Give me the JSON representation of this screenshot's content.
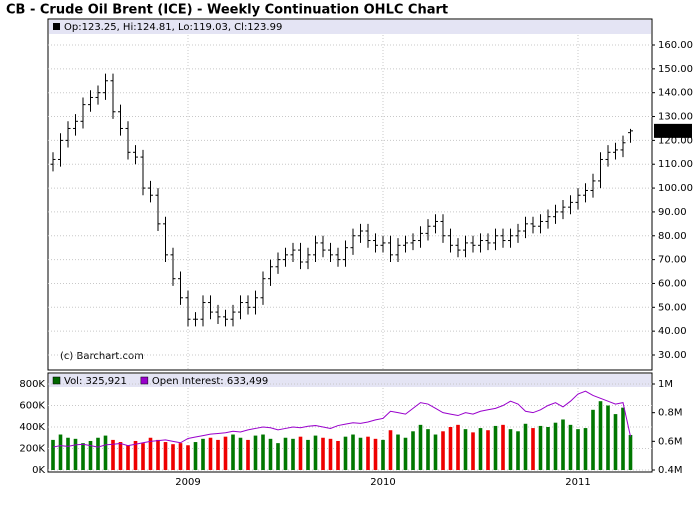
{
  "chart_data": [
    {
      "type": "ohlc",
      "title": "CB - Crude Oil Brent (ICE) - Weekly Continuation OHLC Chart",
      "header": "Op:123.25, Hi:124.81, Lo:119.03, Cl:123.99",
      "annotation": "(c) Barchart.com",
      "up_color": "#007700",
      "down_color": "#ee0000",
      "color": "#000000",
      "categories": [
        null,
        null,
        null,
        null,
        null,
        null,
        null,
        null,
        null,
        null,
        null,
        null,
        null,
        null,
        null,
        null,
        null,
        null,
        "2009",
        null,
        null,
        null,
        null,
        null,
        null,
        null,
        null,
        null,
        null,
        null,
        null,
        null,
        null,
        null,
        null,
        null,
        null,
        null,
        null,
        null,
        null,
        null,
        null,
        null,
        "2010",
        null,
        null,
        null,
        null,
        null,
        null,
        null,
        null,
        null,
        null,
        null,
        null,
        null,
        null,
        null,
        null,
        null,
        null,
        null,
        null,
        null,
        null,
        null,
        null,
        null,
        "2011",
        null,
        null,
        null,
        null,
        null,
        null,
        null
      ],
      "open": [
        110,
        112,
        120,
        125,
        128,
        135,
        138,
        140,
        145,
        132,
        125,
        115,
        113,
        100,
        97,
        85,
        72,
        62,
        54,
        45,
        45,
        52,
        48,
        46,
        45,
        48,
        52,
        50,
        54,
        62,
        67,
        70,
        72,
        74,
        69,
        72,
        77,
        74,
        72,
        70,
        75,
        80,
        82,
        78,
        76,
        77,
        72,
        76,
        77,
        78,
        81,
        84,
        86,
        80,
        76,
        74,
        77,
        76,
        78,
        77,
        80,
        78,
        80,
        82,
        85,
        84,
        86,
        88,
        90,
        92,
        94,
        97,
        99,
        103,
        112,
        115,
        116,
        123.25
      ],
      "high": [
        115,
        123,
        128,
        131,
        138,
        141,
        143,
        148,
        148,
        135,
        128,
        118,
        116,
        103,
        100,
        88,
        75,
        65,
        57,
        48,
        55,
        55,
        51,
        49,
        51,
        55,
        55,
        57,
        65,
        70,
        73,
        75,
        77,
        77,
        75,
        80,
        80,
        77,
        75,
        78,
        83,
        85,
        85,
        81,
        80,
        80,
        79,
        80,
        81,
        84,
        87,
        89,
        89,
        83,
        79,
        80,
        80,
        81,
        81,
        83,
        83,
        83,
        85,
        88,
        88,
        89,
        91,
        93,
        95,
        97,
        100,
        102,
        106,
        115,
        118,
        119,
        122,
        124.81
      ],
      "low": [
        107,
        109,
        117,
        122,
        125,
        132,
        135,
        137,
        129,
        122,
        112,
        110,
        97,
        94,
        82,
        69,
        59,
        51,
        42,
        42,
        42,
        45,
        43,
        42,
        42,
        45,
        47,
        47,
        51,
        59,
        64,
        67,
        69,
        66,
        66,
        69,
        71,
        69,
        67,
        67,
        72,
        77,
        75,
        73,
        73,
        69,
        69,
        73,
        74,
        75,
        78,
        81,
        77,
        73,
        71,
        71,
        73,
        73,
        74,
        74,
        75,
        75,
        77,
        79,
        81,
        81,
        83,
        85,
        87,
        89,
        91,
        94,
        96,
        100,
        109,
        112,
        113,
        119.03
      ],
      "close": [
        112,
        120,
        125,
        128,
        135,
        138,
        140,
        145,
        132,
        125,
        115,
        113,
        100,
        97,
        85,
        72,
        62,
        54,
        45,
        45,
        52,
        48,
        46,
        45,
        48,
        52,
        50,
        54,
        62,
        67,
        70,
        72,
        74,
        69,
        72,
        77,
        74,
        72,
        70,
        75,
        80,
        82,
        78,
        76,
        77,
        72,
        76,
        77,
        78,
        81,
        84,
        86,
        80,
        76,
        74,
        77,
        76,
        78,
        77,
        80,
        78,
        80,
        82,
        85,
        84,
        86,
        88,
        90,
        92,
        94,
        97,
        99,
        103,
        112,
        115,
        116,
        119,
        123.99
      ],
      "ylim": [
        30,
        160
      ],
      "yticks": [
        {
          "value": 30,
          "label": "30.00"
        },
        {
          "value": 40,
          "label": "40.00"
        },
        {
          "value": 50,
          "label": "50.00"
        },
        {
          "value": 60,
          "label": "60.00"
        },
        {
          "value": 70,
          "label": "70.00"
        },
        {
          "value": 80,
          "label": "80.00"
        },
        {
          "value": 90,
          "label": "90.00"
        },
        {
          "value": 100,
          "label": "100.00"
        },
        {
          "value": 110,
          "label": "110.00"
        },
        {
          "value": 120,
          "label": "120.00"
        },
        {
          "value": 130,
          "label": "130.00"
        },
        {
          "value": 140,
          "label": "140.00"
        },
        {
          "value": 150,
          "label": "150.00"
        },
        {
          "value": 160,
          "label": "160.00"
        }
      ],
      "grid": true
    },
    {
      "type": "bar",
      "series": [
        {
          "name": "Vol: 325,921",
          "color": "#006600",
          "values": [
            280000,
            330000,
            300000,
            290000,
            250000,
            270000,
            300000,
            320000,
            280000,
            260000,
            230000,
            270000,
            250000,
            300000,
            280000,
            260000,
            240000,
            250000,
            230000,
            260000,
            290000,
            300000,
            280000,
            310000,
            330000,
            300000,
            280000,
            320000,
            330000,
            290000,
            250000,
            300000,
            290000,
            310000,
            280000,
            320000,
            300000,
            290000,
            270000,
            310000,
            330000,
            300000,
            310000,
            290000,
            280000,
            370000,
            330000,
            300000,
            360000,
            420000,
            380000,
            330000,
            360000,
            400000,
            420000,
            380000,
            350000,
            390000,
            370000,
            410000,
            420000,
            380000,
            360000,
            430000,
            390000,
            410000,
            400000,
            440000,
            470000,
            420000,
            380000,
            390000,
            560000,
            640000,
            600000,
            520000,
            580000,
            325921
          ]
        },
        {
          "name": "Open Interest: 633,499",
          "color": "#9900cc",
          "axis": "y2",
          "values": [
            560000,
            570000,
            565000,
            575000,
            580000,
            570000,
            560000,
            575000,
            580000,
            585000,
            570000,
            580000,
            590000,
            600000,
            605000,
            610000,
            600000,
            590000,
            620000,
            630000,
            640000,
            650000,
            655000,
            660000,
            670000,
            665000,
            680000,
            690000,
            700000,
            695000,
            680000,
            690000,
            700000,
            695000,
            705000,
            710000,
            700000,
            690000,
            710000,
            720000,
            730000,
            725000,
            735000,
            750000,
            760000,
            810000,
            800000,
            790000,
            830000,
            870000,
            860000,
            830000,
            800000,
            790000,
            780000,
            800000,
            790000,
            810000,
            820000,
            830000,
            850000,
            880000,
            860000,
            810000,
            800000,
            820000,
            850000,
            870000,
            840000,
            880000,
            930000,
            950000,
            920000,
            900000,
            880000,
            860000,
            870000,
            633499
          ]
        }
      ],
      "ylim": [
        0,
        800000
      ],
      "yticks": [
        {
          "value": 0,
          "label": "0K"
        },
        {
          "value": 200000,
          "label": "200K"
        },
        {
          "value": 400000,
          "label": "400K"
        },
        {
          "value": 600000,
          "label": "600K"
        },
        {
          "value": 800000,
          "label": "800K"
        }
      ],
      "y2lim": [
        400000,
        1000000
      ],
      "y2ticks": [
        {
          "value": 400000,
          "label": "0.4M"
        },
        {
          "value": 600000,
          "label": "0.6M"
        },
        {
          "value": 800000,
          "label": "0.8M"
        },
        {
          "value": 1000000,
          "label": "1M"
        }
      ],
      "grid": true
    }
  ]
}
